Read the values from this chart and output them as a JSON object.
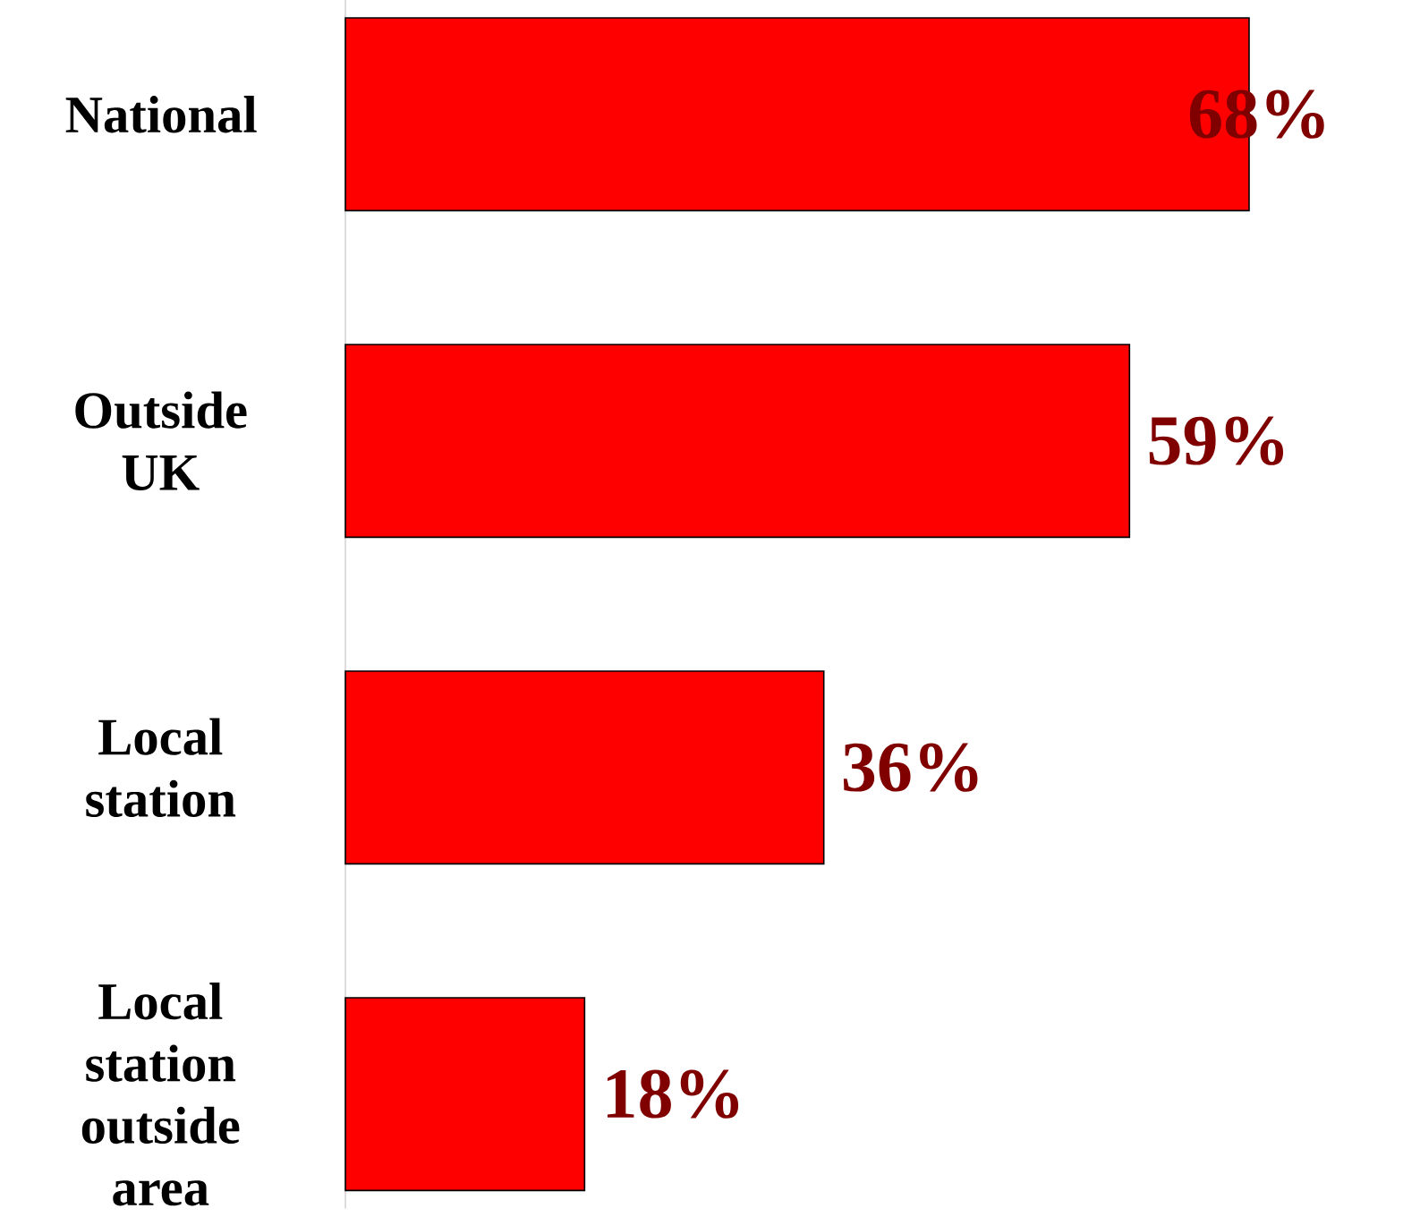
{
  "chart_data": {
    "type": "bar",
    "orientation": "horizontal",
    "categories": [
      "National",
      "Outside UK",
      "Local station",
      "Local station outside area"
    ],
    "values": [
      68,
      59,
      36,
      18
    ],
    "color": "#ff0000",
    "value_labels": [
      "68%",
      "59%",
      "36%",
      "18%"
    ],
    "grid": false
  }
}
